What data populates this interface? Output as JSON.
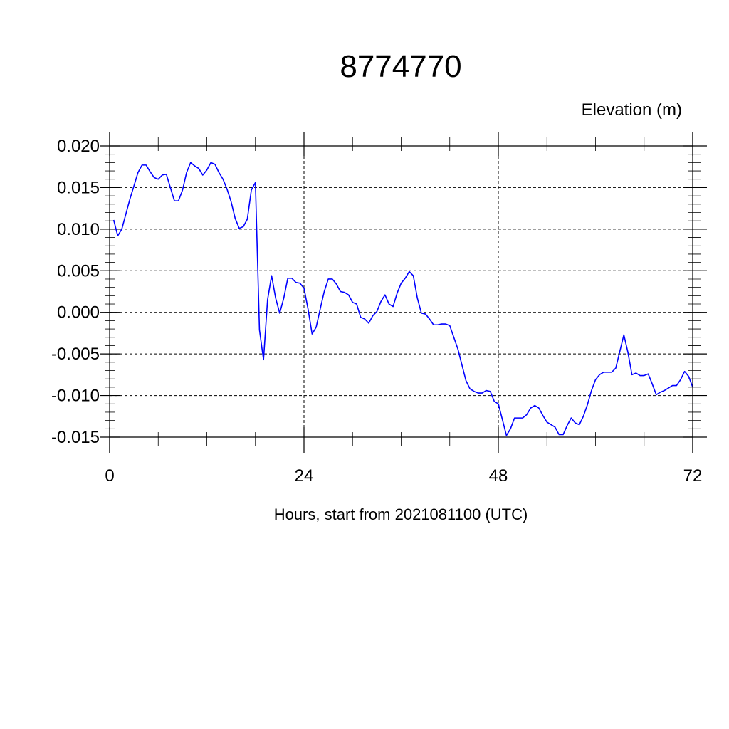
{
  "chart_data": {
    "type": "line",
    "title": "8774770",
    "subtitle": "Elevation (m)",
    "xlabel": "Hours, start from 2021081100 (UTC)",
    "ylabel": "",
    "xlim": [
      0,
      72
    ],
    "ylim": [
      -0.015,
      0.02
    ],
    "xticks": [
      0,
      24,
      48,
      72
    ],
    "xtick_labels": [
      "0",
      "24",
      "48",
      "72"
    ],
    "yticks": [
      -0.015,
      -0.01,
      -0.005,
      0.0,
      0.005,
      0.01,
      0.015,
      0.02
    ],
    "ytick_labels": [
      "-0.015",
      "-0.010",
      "-0.005",
      "0.000",
      "0.005",
      "0.010",
      "0.015",
      "0.020"
    ],
    "grid": true,
    "legend": "none",
    "line_color": "#0000ff",
    "series": [
      {
        "x": [
          0.5,
          1.0,
          1.5,
          2.0,
          2.5,
          3.0,
          3.5,
          4.0,
          4.5,
          5.0,
          5.5,
          6.0,
          6.5,
          7.0,
          7.5,
          8.0,
          8.5,
          9.0,
          9.5,
          10.0,
          10.5,
          11.0,
          11.5,
          12.0,
          12.5,
          13.0,
          13.5,
          14.0,
          14.5,
          15.0,
          15.5,
          16.0,
          16.5,
          17.0,
          17.5,
          18.0,
          18.5,
          19.0,
          19.5,
          20.0,
          20.5,
          21.0,
          21.5,
          22.0,
          22.5,
          23.0,
          23.5,
          24.0,
          24.5,
          25.0,
          25.5,
          26.0,
          26.5,
          27.0,
          27.5,
          28.0,
          28.5,
          29.0,
          29.5,
          30.0,
          30.5,
          31.0,
          31.5,
          32.0,
          32.5,
          33.0,
          33.5,
          34.0,
          34.5,
          35.0,
          35.5,
          36.0,
          36.5,
          37.0,
          37.5,
          38.0,
          38.5,
          39.0,
          39.5,
          40.0,
          40.5,
          41.0,
          41.5,
          42.0,
          42.5,
          43.0,
          43.5,
          44.0,
          44.5,
          45.0,
          45.5,
          46.0,
          46.5,
          47.0,
          47.5,
          48.0,
          48.5,
          49.0,
          49.5,
          50.0,
          50.5,
          51.0,
          51.5,
          52.0,
          52.5,
          53.0,
          53.5,
          54.0,
          54.5,
          55.0,
          55.5,
          56.0,
          56.5,
          57.0,
          57.5,
          58.0,
          58.5,
          59.0,
          59.5,
          60.0,
          60.5,
          61.0,
          61.5,
          62.0,
          62.5,
          63.0,
          63.5,
          64.0,
          64.5,
          65.0,
          65.5,
          66.0,
          66.5,
          67.0,
          67.5,
          68.0,
          68.5,
          69.0,
          69.5,
          70.0,
          70.5,
          71.0,
          71.5,
          72.0
        ],
        "values": [
          0.0111,
          0.0092,
          0.01,
          0.0118,
          0.0136,
          0.0152,
          0.0168,
          0.0177,
          0.0177,
          0.0169,
          0.0162,
          0.016,
          0.0165,
          0.0166,
          0.015,
          0.0134,
          0.0134,
          0.0147,
          0.0168,
          0.018,
          0.0176,
          0.0173,
          0.0165,
          0.0171,
          0.018,
          0.0178,
          0.0168,
          0.016,
          0.0148,
          0.0133,
          0.0113,
          0.0101,
          0.0103,
          0.0112,
          0.0147,
          0.0156,
          -0.0021,
          -0.0057,
          0.0015,
          0.0044,
          0.0017,
          -0.0001,
          0.0017,
          0.0041,
          0.0041,
          0.0036,
          0.0035,
          0.0029,
          0.0004,
          -0.0026,
          -0.0018,
          0.0004,
          0.0025,
          0.004,
          0.004,
          0.0034,
          0.0025,
          0.0024,
          0.0021,
          0.0012,
          0.001,
          -0.0006,
          -0.0008,
          -0.0013,
          -0.0004,
          0.0001,
          0.0013,
          0.0021,
          0.001,
          0.0007,
          0.0023,
          0.0035,
          0.0041,
          0.0049,
          0.0044,
          0.0017,
          -0.0001,
          -0.0002,
          -0.0008,
          -0.0015,
          -0.0015,
          -0.0014,
          -0.0014,
          -0.0016,
          -0.003,
          -0.0044,
          -0.0063,
          -0.0082,
          -0.0092,
          -0.0095,
          -0.0097,
          -0.0097,
          -0.0094,
          -0.0095,
          -0.0107,
          -0.011,
          -0.0129,
          -0.0148,
          -0.014,
          -0.0127,
          -0.0127,
          -0.0127,
          -0.0123,
          -0.0115,
          -0.0112,
          -0.0115,
          -0.0124,
          -0.0132,
          -0.0135,
          -0.0138,
          -0.0147,
          -0.0147,
          -0.0136,
          -0.0127,
          -0.0133,
          -0.0135,
          -0.0125,
          -0.0111,
          -0.0094,
          -0.0081,
          -0.0075,
          -0.0072,
          -0.0072,
          -0.0072,
          -0.0067,
          -0.0047,
          -0.0027,
          -0.0048,
          -0.0075,
          -0.0073,
          -0.0076,
          -0.0076,
          -0.0074,
          -0.0086,
          -0.0099,
          -0.0096,
          -0.0094,
          -0.0091,
          -0.0088,
          -0.0088,
          -0.0081,
          -0.0071,
          -0.0077,
          -0.009
        ]
      }
    ]
  }
}
